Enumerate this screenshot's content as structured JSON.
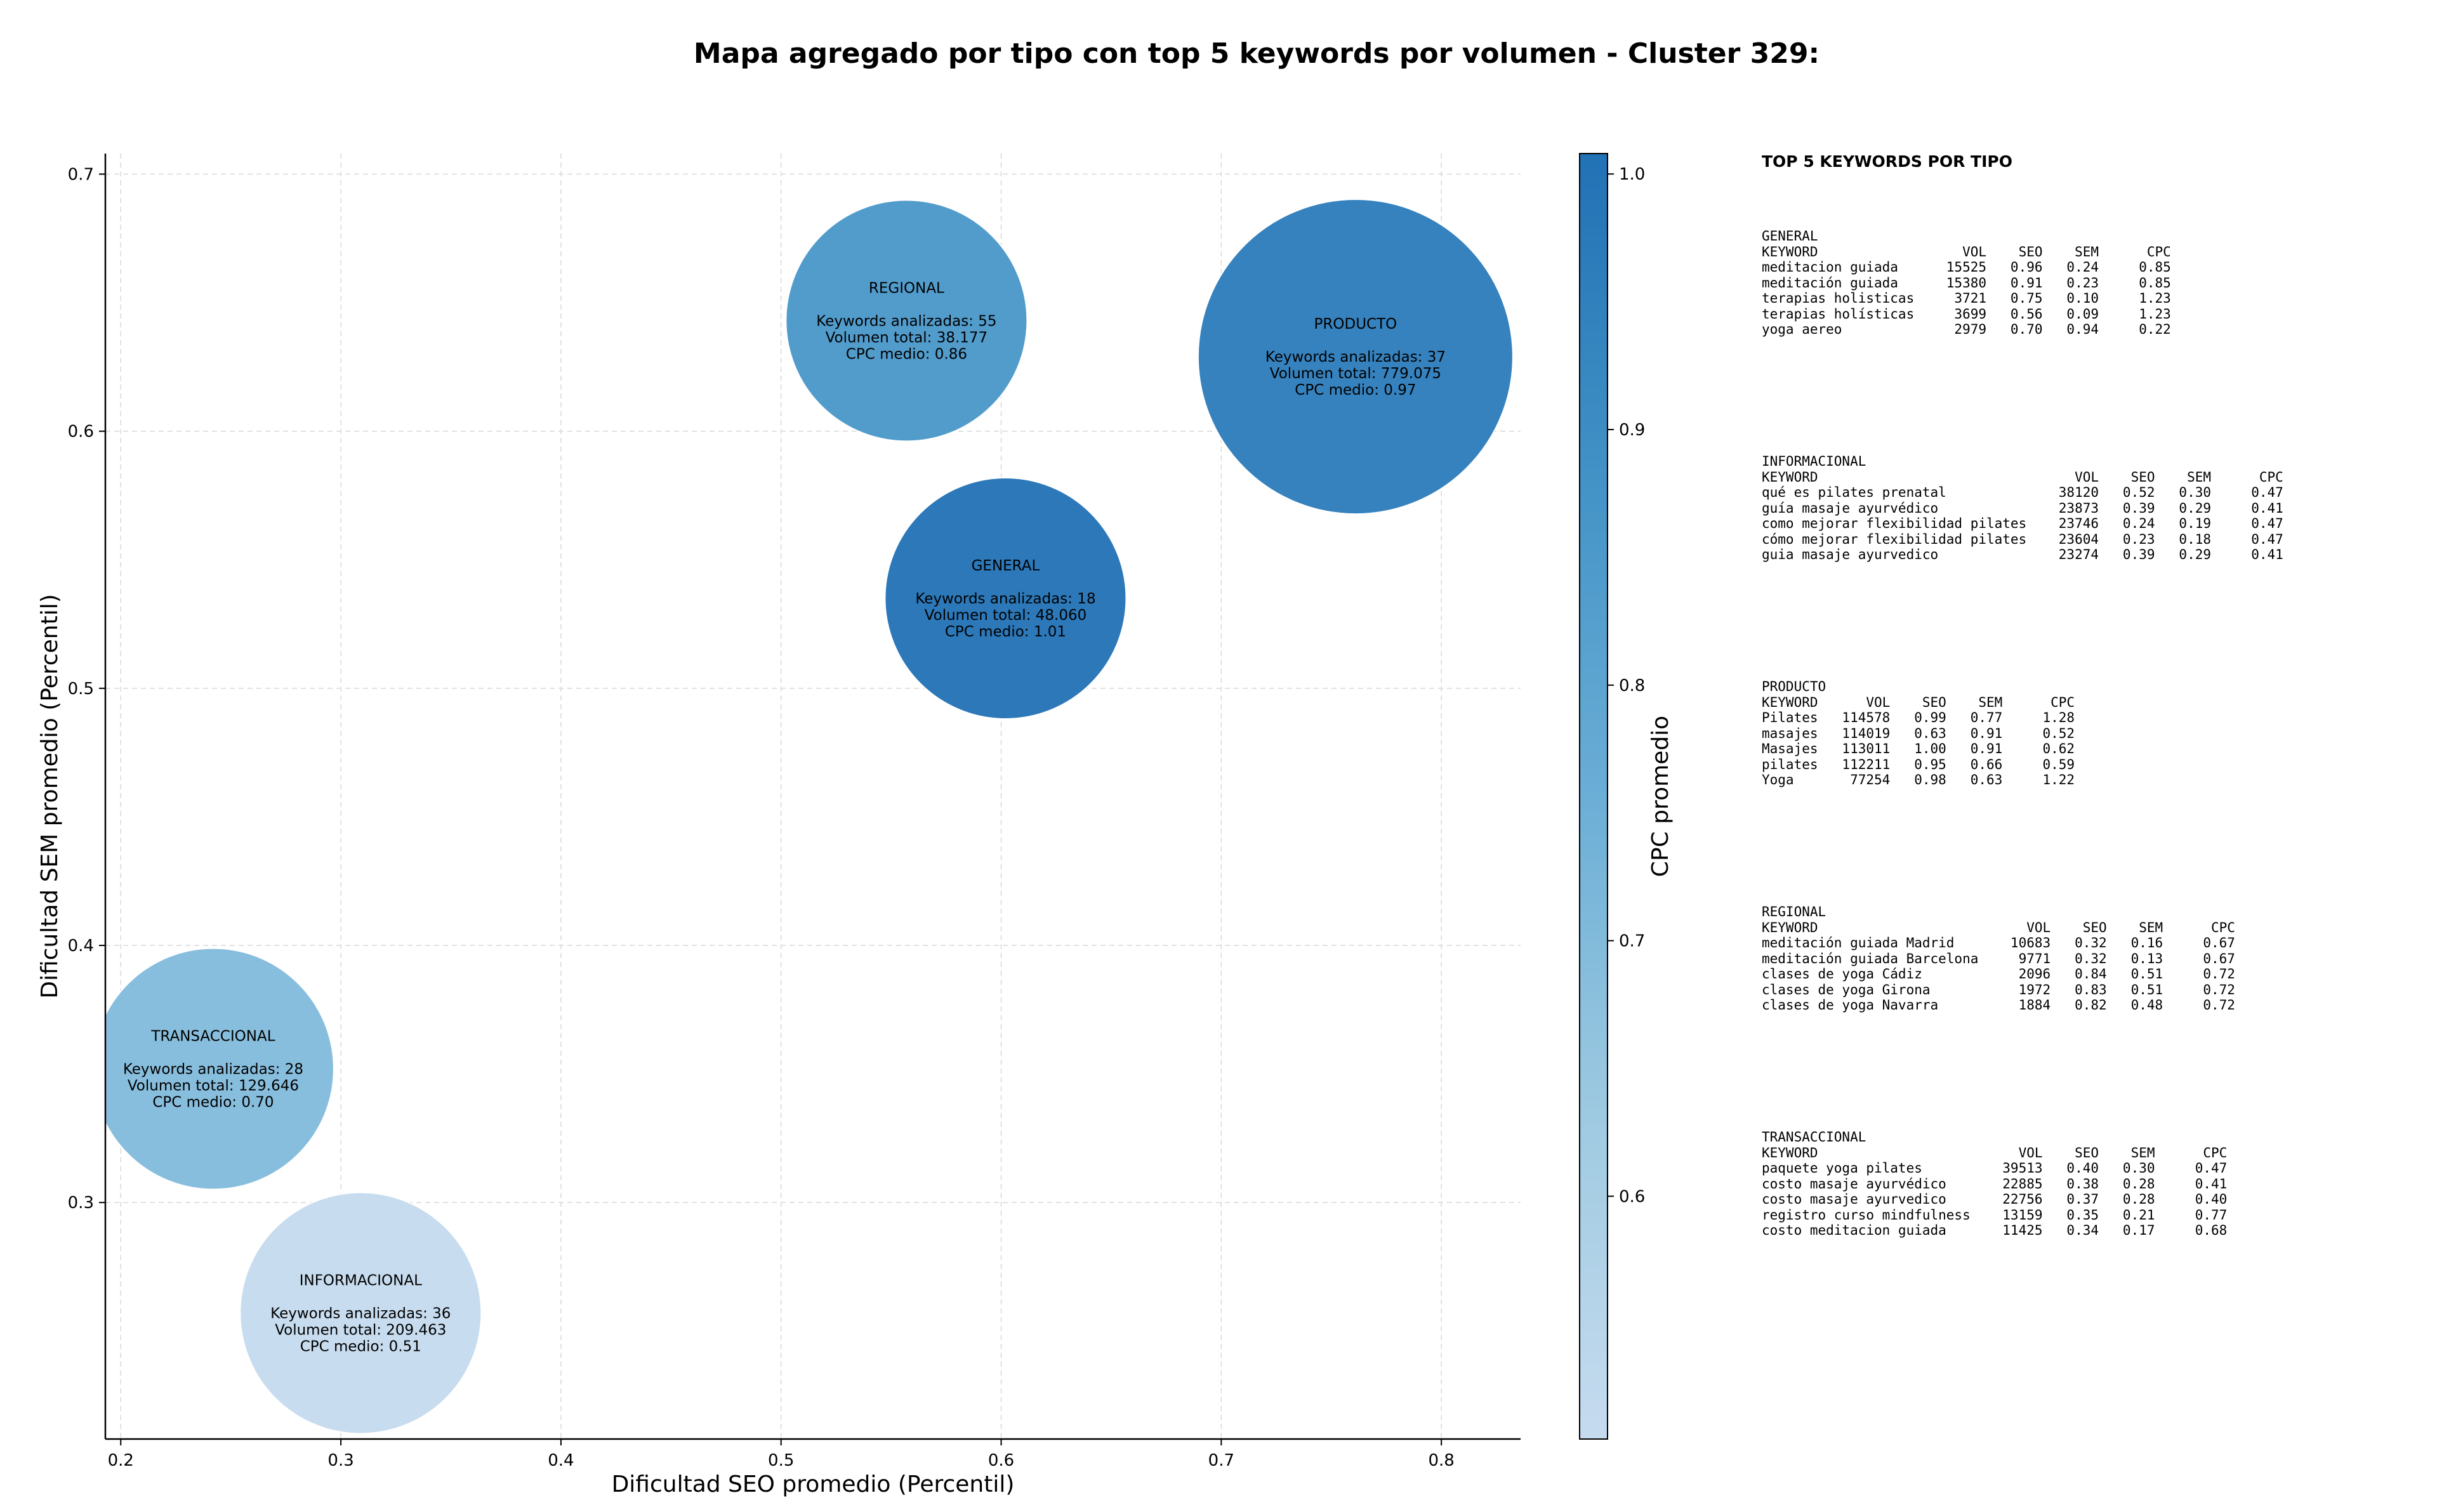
{
  "chart_data": {
    "type": "scatter",
    "title": "Mapa agregado por tipo con top 5 keywords por volumen - Cluster 329:",
    "xlabel": "Dificultad SEO promedio (Percentil)",
    "ylabel": "Dificultad SEM promedio (Percentil)",
    "xlim": [
      0.193,
      0.836
    ],
    "ylim": [
      0.208,
      0.708
    ],
    "x_ticks": [
      "0.2",
      "0.3",
      "0.4",
      "0.5",
      "0.6",
      "0.7",
      "0.8"
    ],
    "y_ticks": [
      "0.3",
      "0.4",
      "0.5",
      "0.6",
      "0.7"
    ],
    "grid": true,
    "colorbar": {
      "label": "CPC promedio",
      "range": [
        0.505,
        1.008
      ],
      "ticks": [
        "0.6",
        "0.7",
        "0.8",
        "0.9",
        "1.0"
      ],
      "colors": [
        "#c6dbef",
        "#9ecae1",
        "#6baed6",
        "#4292c6",
        "#2171b5"
      ]
    },
    "bubbles": [
      {
        "name": "GENERAL",
        "x": 0.602,
        "y": 0.535,
        "volume": 48060,
        "keywords": 18,
        "cpc": 1.01,
        "lines": [
          "GENERAL",
          "",
          "Keywords analizadas: 18",
          "Volumen total: 48.060",
          "CPC medio: 1.01"
        ]
      },
      {
        "name": "INFORMACIONAL",
        "x": 0.309,
        "y": 0.257,
        "volume": 209463,
        "keywords": 36,
        "cpc": 0.51,
        "lines": [
          "INFORMACIONAL",
          "",
          "Keywords analizadas: 36",
          "Volumen total: 209.463",
          "CPC medio: 0.51"
        ]
      },
      {
        "name": "PRODUCTO",
        "x": 0.761,
        "y": 0.629,
        "volume": 779075,
        "keywords": 37,
        "cpc": 0.97,
        "lines": [
          "PRODUCTO",
          "",
          "Keywords analizadas: 37",
          "Volumen total: 779.075",
          "CPC medio: 0.97"
        ]
      },
      {
        "name": "REGIONAL",
        "x": 0.557,
        "y": 0.643,
        "volume": 38177,
        "keywords": 55,
        "cpc": 0.86,
        "lines": [
          "REGIONAL",
          "",
          "Keywords analizadas: 55",
          "Volumen total: 38.177",
          "CPC medio: 0.86"
        ]
      },
      {
        "name": "TRANSACCIONAL",
        "x": 0.242,
        "y": 0.352,
        "volume": 129646,
        "keywords": 28,
        "cpc": 0.7,
        "lines": [
          "TRANSACCIONAL",
          "",
          "Keywords analizadas: 28",
          "Volumen total: 129.646",
          "CPC medio: 0.70"
        ]
      }
    ]
  },
  "side_panel": {
    "title": "TOP 5 KEYWORDS POR TIPO",
    "groups": [
      {
        "name": "GENERAL",
        "header": [
          "KEYWORD",
          "VOL",
          "SEO",
          "SEM",
          "CPC"
        ],
        "rows": [
          [
            "meditacion guiada",
            "15525",
            "0.96",
            "0.24",
            "0.85"
          ],
          [
            "meditación guiada",
            "15380",
            "0.91",
            "0.23",
            "0.85"
          ],
          [
            "terapias holisticas",
            "3721",
            "0.75",
            "0.10",
            "1.23"
          ],
          [
            "terapias holísticas",
            "3699",
            "0.56",
            "0.09",
            "1.23"
          ],
          [
            "yoga aereo",
            "2979",
            "0.70",
            "0.94",
            "0.22"
          ]
        ]
      },
      {
        "name": "INFORMACIONAL",
        "header": [
          "KEYWORD",
          "VOL",
          "SEO",
          "SEM",
          "CPC"
        ],
        "rows": [
          [
            "qué es pilates prenatal",
            "38120",
            "0.52",
            "0.30",
            "0.47"
          ],
          [
            "guía masaje ayurvédico",
            "23873",
            "0.39",
            "0.29",
            "0.41"
          ],
          [
            "como mejorar flexibilidad pilates",
            "23746",
            "0.24",
            "0.19",
            "0.47"
          ],
          [
            "cómo mejorar flexibilidad pilates",
            "23604",
            "0.23",
            "0.18",
            "0.47"
          ],
          [
            "guia masaje ayurvedico",
            "23274",
            "0.39",
            "0.29",
            "0.41"
          ]
        ]
      },
      {
        "name": "PRODUCTO",
        "header": [
          "KEYWORD",
          "VOL",
          "SEO",
          "SEM",
          "CPC"
        ],
        "rows": [
          [
            "Pilates",
            "114578",
            "0.99",
            "0.77",
            "1.28"
          ],
          [
            "masajes",
            "114019",
            "0.63",
            "0.91",
            "0.52"
          ],
          [
            "Masajes",
            "113011",
            "1.00",
            "0.91",
            "0.62"
          ],
          [
            "pilates",
            "112211",
            "0.95",
            "0.66",
            "0.59"
          ],
          [
            "Yoga",
            "77254",
            "0.98",
            "0.63",
            "1.22"
          ]
        ]
      },
      {
        "name": "REGIONAL",
        "header": [
          "KEYWORD",
          "VOL",
          "SEO",
          "SEM",
          "CPC"
        ],
        "rows": [
          [
            "meditación guiada Madrid",
            "10683",
            "0.32",
            "0.16",
            "0.67"
          ],
          [
            "meditación guiada Barcelona",
            "9771",
            "0.32",
            "0.13",
            "0.67"
          ],
          [
            "clases de yoga Cádiz",
            "2096",
            "0.84",
            "0.51",
            "0.72"
          ],
          [
            "clases de yoga Girona",
            "1972",
            "0.83",
            "0.51",
            "0.72"
          ],
          [
            "clases de yoga Navarra",
            "1884",
            "0.82",
            "0.48",
            "0.72"
          ]
        ]
      },
      {
        "name": "TRANSACCIONAL",
        "header": [
          "KEYWORD",
          "VOL",
          "SEO",
          "SEM",
          "CPC"
        ],
        "rows": [
          [
            "paquete yoga pilates",
            "39513",
            "0.40",
            "0.30",
            "0.47"
          ],
          [
            "costo masaje ayurvédico",
            "22885",
            "0.38",
            "0.28",
            "0.41"
          ],
          [
            "costo masaje ayurvedico",
            "22756",
            "0.37",
            "0.28",
            "0.40"
          ],
          [
            "registro curso mindfulness",
            "13159",
            "0.35",
            "0.21",
            "0.77"
          ],
          [
            "costo meditacion guiada",
            "11425",
            "0.34",
            "0.17",
            "0.68"
          ]
        ]
      }
    ]
  }
}
